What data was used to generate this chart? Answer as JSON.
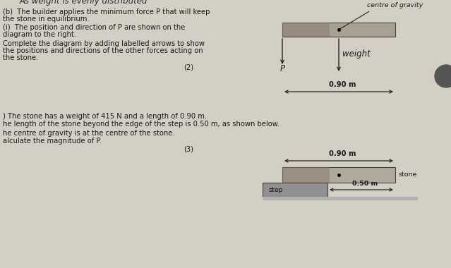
{
  "bg_color": "#d4cfc5",
  "paper_color": "#e8e4db",
  "text_color": "#1a1a1a",
  "title_line1": "As weight is evenly distributed",
  "line_b": "(b)  The builder applies the minimum force P that will keep",
  "line_b2": "the stone in equilibrium.",
  "line_i": "(i)  The position and direction of P are shown on the",
  "line_i2": "diagram to the right.",
  "line_complete": "Complete the diagram by adding labelled arrows to show",
  "line_complete2": "the positions and directions of the other forces acting on",
  "line_complete3": "the stone.",
  "mark2": "(2)",
  "line_weight": ") The stone has a weight of 415 N and a length of 0.90 m.",
  "line_length": "he length of the stone beyond the edge of the step is 0.50 m, as shown below.",
  "line_gravity": "he centre of gravity is at the centre of the stone.",
  "line_calc": "alculate the magnitude of P.",
  "mark3": "(3)",
  "dim_090": "0.90 m",
  "dim_090b": "0.90 m",
  "dim_050": "0.50 m",
  "label_cog": "centre of gravity",
  "label_weight": "weight",
  "label_P_top": "P",
  "label_stone": "stone",
  "label_step": "step",
  "stone_color_top": "#a8a090",
  "stone_color_bot": "#b0a898",
  "step_color": "#909090",
  "floor_color": "#b0b0b0",
  "arrow_color": "#222222",
  "line_color": "#333333"
}
